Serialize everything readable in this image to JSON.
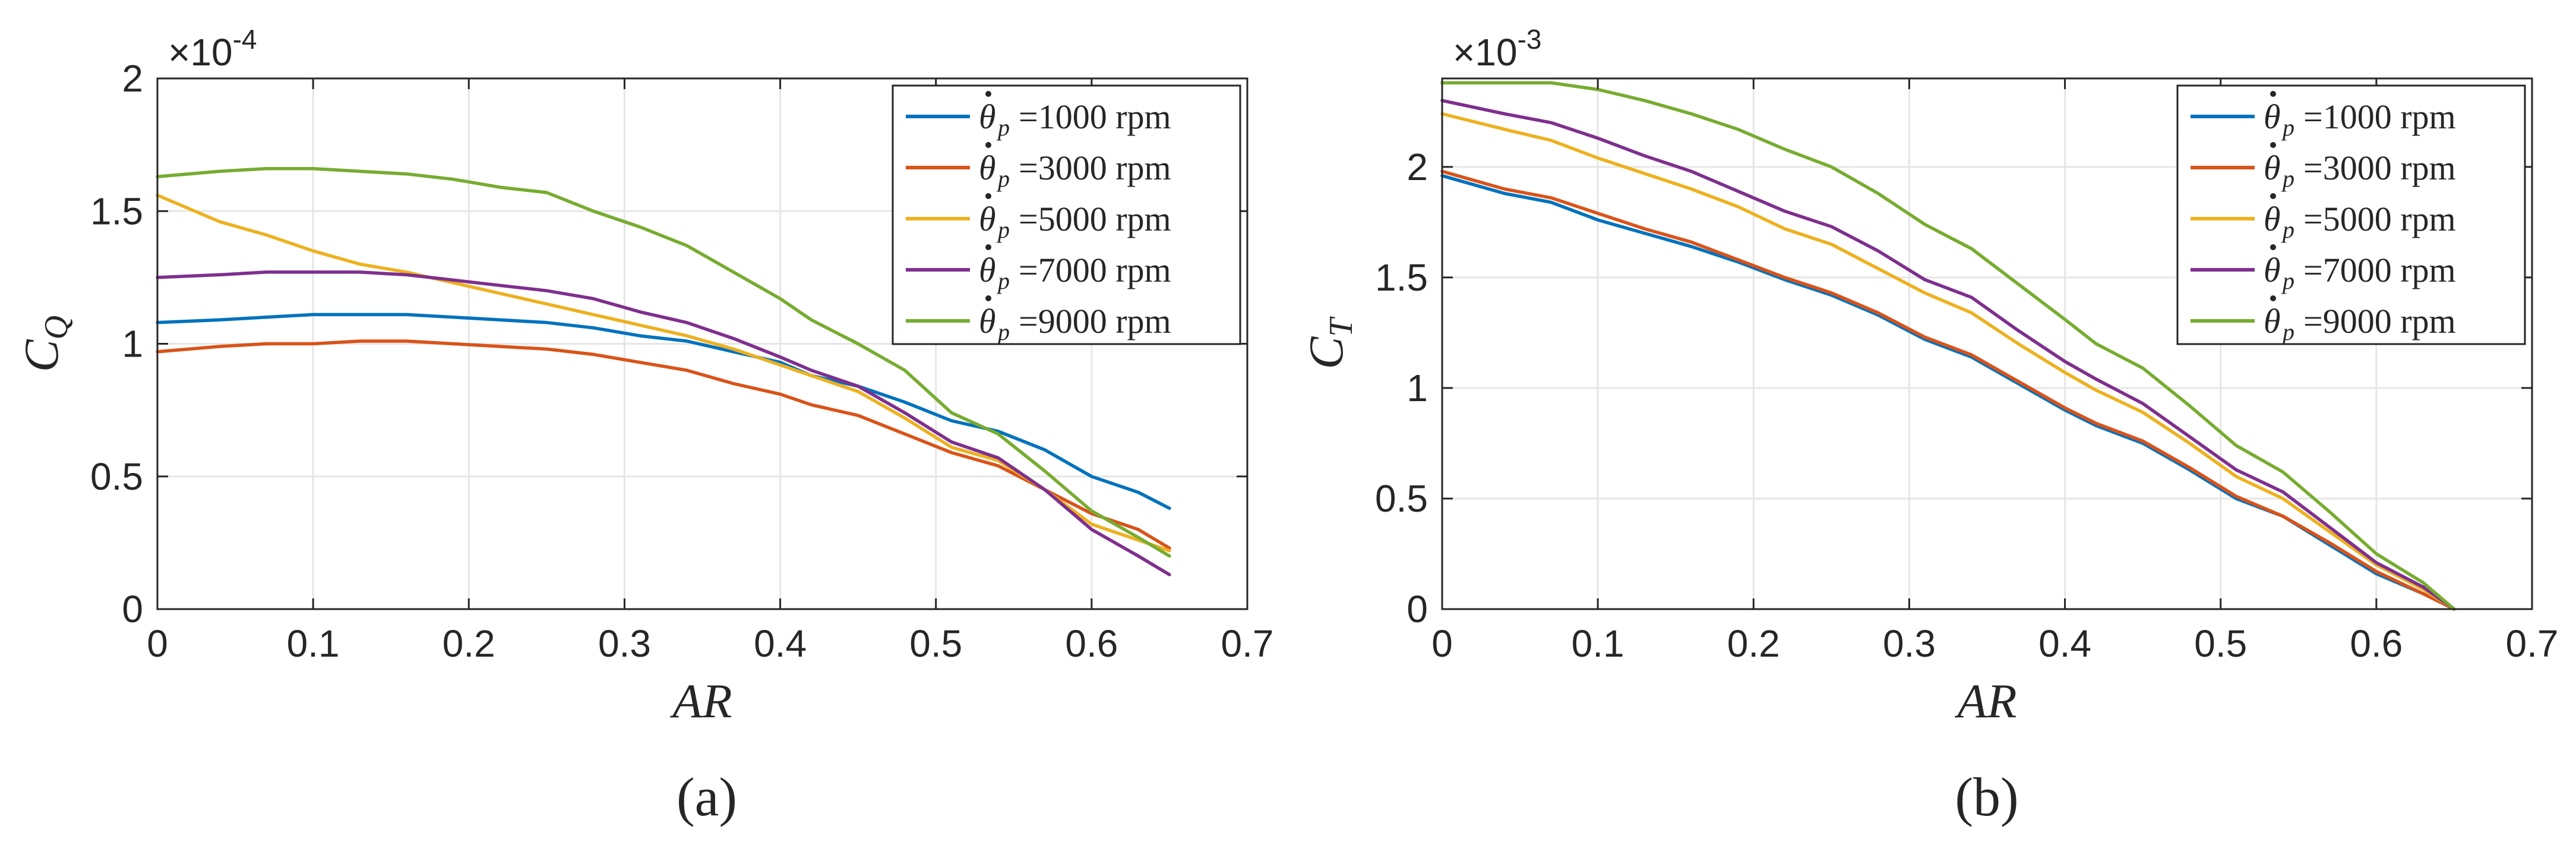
{
  "colors": [
    "#0072BD",
    "#D95319",
    "#EDB120",
    "#7E2F8E",
    "#77AC30"
  ],
  "legend_symbol": "θ",
  "legend_subscript": "p",
  "chart_data": [
    {
      "type": "line",
      "caption": "(a)",
      "xlabel": "AR",
      "ylabel": "C",
      "ylabel_sub": "Q",
      "multiplier_base": "×10",
      "multiplier_exp": "-4",
      "xlim": [
        0,
        0.7
      ],
      "ylim": [
        0,
        2
      ],
      "xticks": [
        0,
        0.1,
        0.2,
        0.3,
        0.4,
        0.5,
        0.6,
        0.7
      ],
      "xtick_labels": [
        "0",
        "0.1",
        "0.2",
        "0.3",
        "0.4",
        "0.5",
        "0.6",
        "0.7"
      ],
      "yticks": [
        0,
        0.5,
        1,
        1.5,
        2
      ],
      "ytick_labels": [
        "0",
        "0.5",
        "1",
        "1.5",
        "2"
      ],
      "grid": true,
      "legend_position": "top-right",
      "x": [
        0,
        0.04,
        0.07,
        0.1,
        0.13,
        0.16,
        0.19,
        0.22,
        0.25,
        0.28,
        0.31,
        0.34,
        0.37,
        0.4,
        0.42,
        0.45,
        0.48,
        0.51,
        0.54,
        0.57,
        0.6,
        0.63,
        0.65
      ],
      "series": [
        {
          "name": "=1000 rpm",
          "values": [
            1.08,
            1.09,
            1.1,
            1.11,
            1.11,
            1.11,
            1.1,
            1.09,
            1.08,
            1.06,
            1.03,
            1.01,
            0.97,
            0.93,
            0.88,
            0.84,
            0.78,
            0.71,
            0.67,
            0.6,
            0.5,
            0.44,
            0.38
          ]
        },
        {
          "name": "=3000 rpm",
          "values": [
            0.97,
            0.99,
            1.0,
            1.0,
            1.01,
            1.01,
            1.0,
            0.99,
            0.98,
            0.96,
            0.93,
            0.9,
            0.85,
            0.81,
            0.77,
            0.73,
            0.66,
            0.59,
            0.54,
            0.45,
            0.36,
            0.3,
            0.23
          ]
        },
        {
          "name": "=5000 rpm",
          "values": [
            1.56,
            1.46,
            1.41,
            1.35,
            1.3,
            1.27,
            1.23,
            1.19,
            1.15,
            1.11,
            1.07,
            1.03,
            0.98,
            0.92,
            0.88,
            0.82,
            0.72,
            0.61,
            0.56,
            0.45,
            0.32,
            0.26,
            0.22
          ]
        },
        {
          "name": "=7000 rpm",
          "values": [
            1.25,
            1.26,
            1.27,
            1.27,
            1.27,
            1.26,
            1.24,
            1.22,
            1.2,
            1.17,
            1.12,
            1.08,
            1.02,
            0.95,
            0.9,
            0.84,
            0.74,
            0.63,
            0.57,
            0.45,
            0.3,
            0.2,
            0.13
          ]
        },
        {
          "name": "=9000 rpm",
          "values": [
            1.63,
            1.65,
            1.66,
            1.66,
            1.65,
            1.64,
            1.62,
            1.59,
            1.57,
            1.5,
            1.44,
            1.37,
            1.27,
            1.17,
            1.09,
            1.0,
            0.9,
            0.74,
            0.66,
            0.52,
            0.37,
            0.27,
            0.2
          ]
        }
      ]
    },
    {
      "type": "line",
      "caption": "(b)",
      "xlabel": "AR",
      "ylabel": "C",
      "ylabel_sub": "T",
      "multiplier_base": "×10",
      "multiplier_exp": "-3",
      "xlim": [
        0,
        0.7
      ],
      "ylim": [
        0,
        2.4
      ],
      "xticks": [
        0,
        0.1,
        0.2,
        0.3,
        0.4,
        0.5,
        0.6,
        0.7
      ],
      "xtick_labels": [
        "0",
        "0.1",
        "0.2",
        "0.3",
        "0.4",
        "0.5",
        "0.6",
        "0.7"
      ],
      "yticks": [
        0,
        0.5,
        1,
        1.5,
        2
      ],
      "ytick_labels": [
        "0",
        "0.5",
        "1",
        "1.5",
        "2"
      ],
      "grid": true,
      "legend_position": "top-right",
      "x": [
        0,
        0.04,
        0.07,
        0.1,
        0.13,
        0.16,
        0.19,
        0.22,
        0.25,
        0.28,
        0.31,
        0.34,
        0.37,
        0.4,
        0.42,
        0.45,
        0.48,
        0.51,
        0.54,
        0.57,
        0.6,
        0.63,
        0.65
      ],
      "series": [
        {
          "name": "=1000 rpm",
          "values": [
            1.96,
            1.88,
            1.84,
            1.76,
            1.7,
            1.64,
            1.57,
            1.49,
            1.42,
            1.33,
            1.22,
            1.14,
            1.02,
            0.9,
            0.83,
            0.75,
            0.63,
            0.5,
            0.42,
            0.29,
            0.16,
            0.07,
            0.0
          ]
        },
        {
          "name": "=3000 rpm",
          "values": [
            1.98,
            1.9,
            1.86,
            1.79,
            1.72,
            1.66,
            1.58,
            1.5,
            1.43,
            1.34,
            1.23,
            1.15,
            1.03,
            0.91,
            0.84,
            0.76,
            0.64,
            0.51,
            0.42,
            0.3,
            0.17,
            0.07,
            0.0
          ]
        },
        {
          "name": "=5000 rpm",
          "values": [
            2.24,
            2.17,
            2.12,
            2.04,
            1.97,
            1.9,
            1.82,
            1.72,
            1.65,
            1.54,
            1.43,
            1.34,
            1.2,
            1.07,
            0.99,
            0.89,
            0.75,
            0.6,
            0.5,
            0.35,
            0.2,
            0.09,
            0.0
          ]
        },
        {
          "name": "=7000 rpm",
          "values": [
            2.3,
            2.24,
            2.2,
            2.13,
            2.05,
            1.98,
            1.89,
            1.8,
            1.73,
            1.62,
            1.49,
            1.41,
            1.26,
            1.12,
            1.04,
            0.93,
            0.78,
            0.63,
            0.53,
            0.37,
            0.21,
            0.1,
            0.0
          ]
        },
        {
          "name": "=9000 rpm",
          "values": [
            2.38,
            2.38,
            2.38,
            2.35,
            2.3,
            2.24,
            2.17,
            2.08,
            2.0,
            1.88,
            1.74,
            1.63,
            1.47,
            1.31,
            1.2,
            1.09,
            0.92,
            0.74,
            0.62,
            0.44,
            0.25,
            0.12,
            0.0
          ]
        }
      ]
    }
  ]
}
